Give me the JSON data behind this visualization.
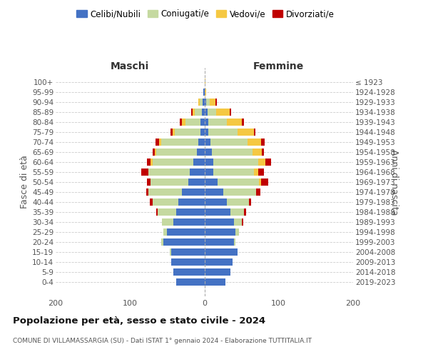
{
  "age_groups": [
    "0-4",
    "5-9",
    "10-14",
    "15-19",
    "20-24",
    "25-29",
    "30-34",
    "35-39",
    "40-44",
    "45-49",
    "50-54",
    "55-59",
    "60-64",
    "65-69",
    "70-74",
    "75-79",
    "80-84",
    "85-89",
    "90-94",
    "95-99",
    "100+"
  ],
  "birth_years": [
    "2019-2023",
    "2014-2018",
    "2009-2013",
    "2004-2008",
    "1999-2003",
    "1994-1998",
    "1989-1993",
    "1984-1988",
    "1979-1983",
    "1974-1978",
    "1969-1973",
    "1964-1968",
    "1959-1963",
    "1954-1958",
    "1949-1953",
    "1944-1948",
    "1939-1943",
    "1934-1938",
    "1929-1933",
    "1924-1928",
    "≤ 1923"
  ],
  "colors": {
    "celibi": "#4472C4",
    "coniugati": "#c5d9a0",
    "vedovi": "#f5c842",
    "divorziati": "#c00000"
  },
  "males": {
    "celibi": [
      38,
      42,
      45,
      45,
      55,
      50,
      42,
      38,
      35,
      30,
      22,
      20,
      15,
      10,
      8,
      5,
      5,
      3,
      2,
      1,
      0
    ],
    "coniugati": [
      0,
      0,
      0,
      2,
      3,
      5,
      15,
      25,
      35,
      45,
      50,
      55,
      55,
      55,
      50,
      35,
      20,
      10,
      4,
      0,
      0
    ],
    "vedovi": [
      0,
      0,
      0,
      0,
      0,
      0,
      0,
      0,
      0,
      0,
      0,
      0,
      2,
      2,
      3,
      3,
      5,
      3,
      2,
      0,
      0
    ],
    "divorziati": [
      0,
      0,
      0,
      0,
      0,
      0,
      0,
      2,
      3,
      3,
      5,
      10,
      5,
      3,
      5,
      3,
      3,
      2,
      0,
      0,
      0
    ]
  },
  "females": {
    "celibi": [
      28,
      35,
      38,
      45,
      40,
      42,
      40,
      35,
      30,
      25,
      18,
      12,
      12,
      10,
      8,
      5,
      5,
      4,
      2,
      0,
      0
    ],
    "coniugati": [
      0,
      0,
      0,
      0,
      2,
      5,
      10,
      18,
      30,
      45,
      55,
      55,
      60,
      55,
      50,
      40,
      25,
      12,
      5,
      0,
      0
    ],
    "vedovi": [
      0,
      0,
      0,
      0,
      0,
      0,
      0,
      0,
      0,
      0,
      3,
      5,
      10,
      12,
      18,
      22,
      20,
      18,
      8,
      2,
      1
    ],
    "divorziati": [
      0,
      0,
      0,
      0,
      0,
      0,
      2,
      3,
      3,
      5,
      10,
      8,
      8,
      3,
      5,
      2,
      3,
      2,
      2,
      0,
      0
    ]
  },
  "title": "Popolazione per età, sesso e stato civile - 2024",
  "subtitle": "COMUNE DI VILLAMASSARGIA (SU) - Dati ISTAT 1° gennaio 2024 - Elaborazione TUTTITALIA.IT",
  "maschi_label": "Maschi",
  "femmine_label": "Femmine",
  "ylabel_left": "Fasce di età",
  "ylabel_right": "Anni di nascita",
  "xlim": 200,
  "legend_labels": [
    "Celibi/Nubili",
    "Coniugati/e",
    "Vedovi/e",
    "Divorziati/e"
  ],
  "bg_color": "#ffffff",
  "grid_color": "#cccccc"
}
